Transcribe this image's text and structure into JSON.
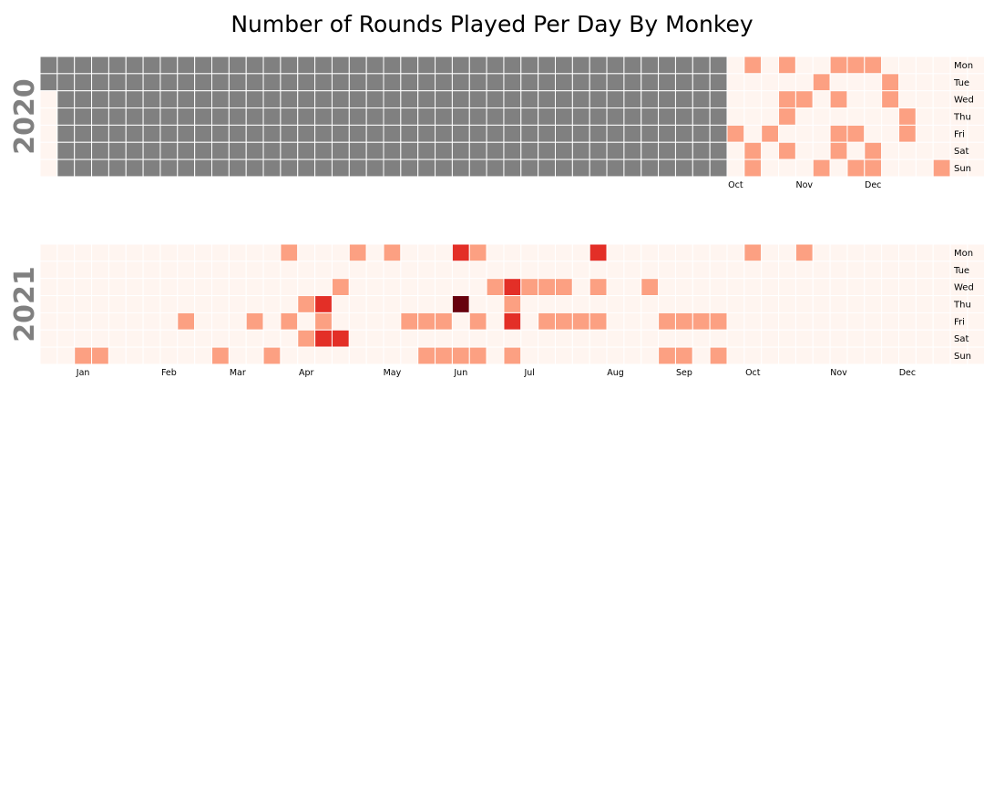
{
  "chart_data": {
    "type": "heatmap",
    "title": "Number of Rounds Played Per Day By Monkey",
    "colors": {
      "no_data": "#808080",
      "scale": [
        "#fff5f0",
        "#fca082",
        "#e32f27",
        "#67000d"
      ]
    },
    "weekday_labels": [
      "Mon",
      "Tue",
      "Wed",
      "Thu",
      "Fri",
      "Sat",
      "Sun"
    ],
    "month_labels": [
      "Jan",
      "Feb",
      "Mar",
      "Apr",
      "May",
      "Jun",
      "Jul",
      "Aug",
      "Sep",
      "Oct",
      "Nov",
      "Dec"
    ],
    "value_encoding": "weekly columns, characters per day Mon..Sun; '-' = no data, 0 = none, 1 = low, 2 = medium, 3 = high",
    "years": [
      {
        "year": "2020",
        "start_weekday": 2,
        "weeks": [
          "--00000",
          "-------",
          "-------",
          "-------",
          "-------",
          "-------",
          "-------",
          "-------",
          "-------",
          "-------",
          "-------",
          "-------",
          "-------",
          "-------",
          "-------",
          "-------",
          "-------",
          "-------",
          "-------",
          "-------",
          "-------",
          "-------",
          "-------",
          "-------",
          "-------",
          "-------",
          "-------",
          "-------",
          "-------",
          "-------",
          "-------",
          "-------",
          "-------",
          "-------",
          "-------",
          "-------",
          "-------",
          "-------",
          "-------",
          "-------",
          "0000100",
          "1000011",
          "0000100",
          "1011010",
          "0010000",
          "0100001",
          "1010110",
          "1000101",
          "1000011",
          "0110000",
          "0001100",
          "0000000",
          "0000001",
          "0000000",
          "0000000",
          "0000000"
        ],
        "labels": {
          "Oct": 40,
          "Nov": 44,
          "Dec": 48
        }
      },
      {
        "year": "2021",
        "start_weekday": 4,
        "weeks": [
          "0000000",
          "0000000",
          "0000001",
          "0000001",
          "0000000",
          "0000000",
          "0000000",
          "0000000",
          "0000100",
          "0000000",
          "0000001",
          "0000000",
          "0000100",
          "0000001",
          "1000100",
          "0001010",
          "0002120",
          "0010020",
          "1000000",
          "0000000",
          "1000000",
          "0000100",
          "0000101",
          "0000101",
          "2003001",
          "1000101",
          "0010000",
          "0021201",
          "0010000",
          "0010100",
          "0010100",
          "0000100",
          "2010100",
          "0000000",
          "0000000",
          "0010000",
          "0000101",
          "0000101",
          "0000100",
          "0000101",
          "0000000",
          "1000000",
          "0000000",
          "0000000",
          "1000000",
          "0000000",
          "0000000",
          "0000000",
          "0000000",
          "0000000",
          "0000000",
          "0000000",
          "0000000",
          "0000000",
          "0000000",
          "0000000",
          "0000000"
        ],
        "labels": {
          "Jan": 2,
          "Feb": 7,
          "Mar": 11,
          "Apr": 15,
          "May": 20,
          "Jun": 24,
          "Jul": 28,
          "Aug": 33,
          "Sep": 37,
          "Oct": 41,
          "Nov": 46,
          "Dec": 50
        }
      }
    ]
  }
}
